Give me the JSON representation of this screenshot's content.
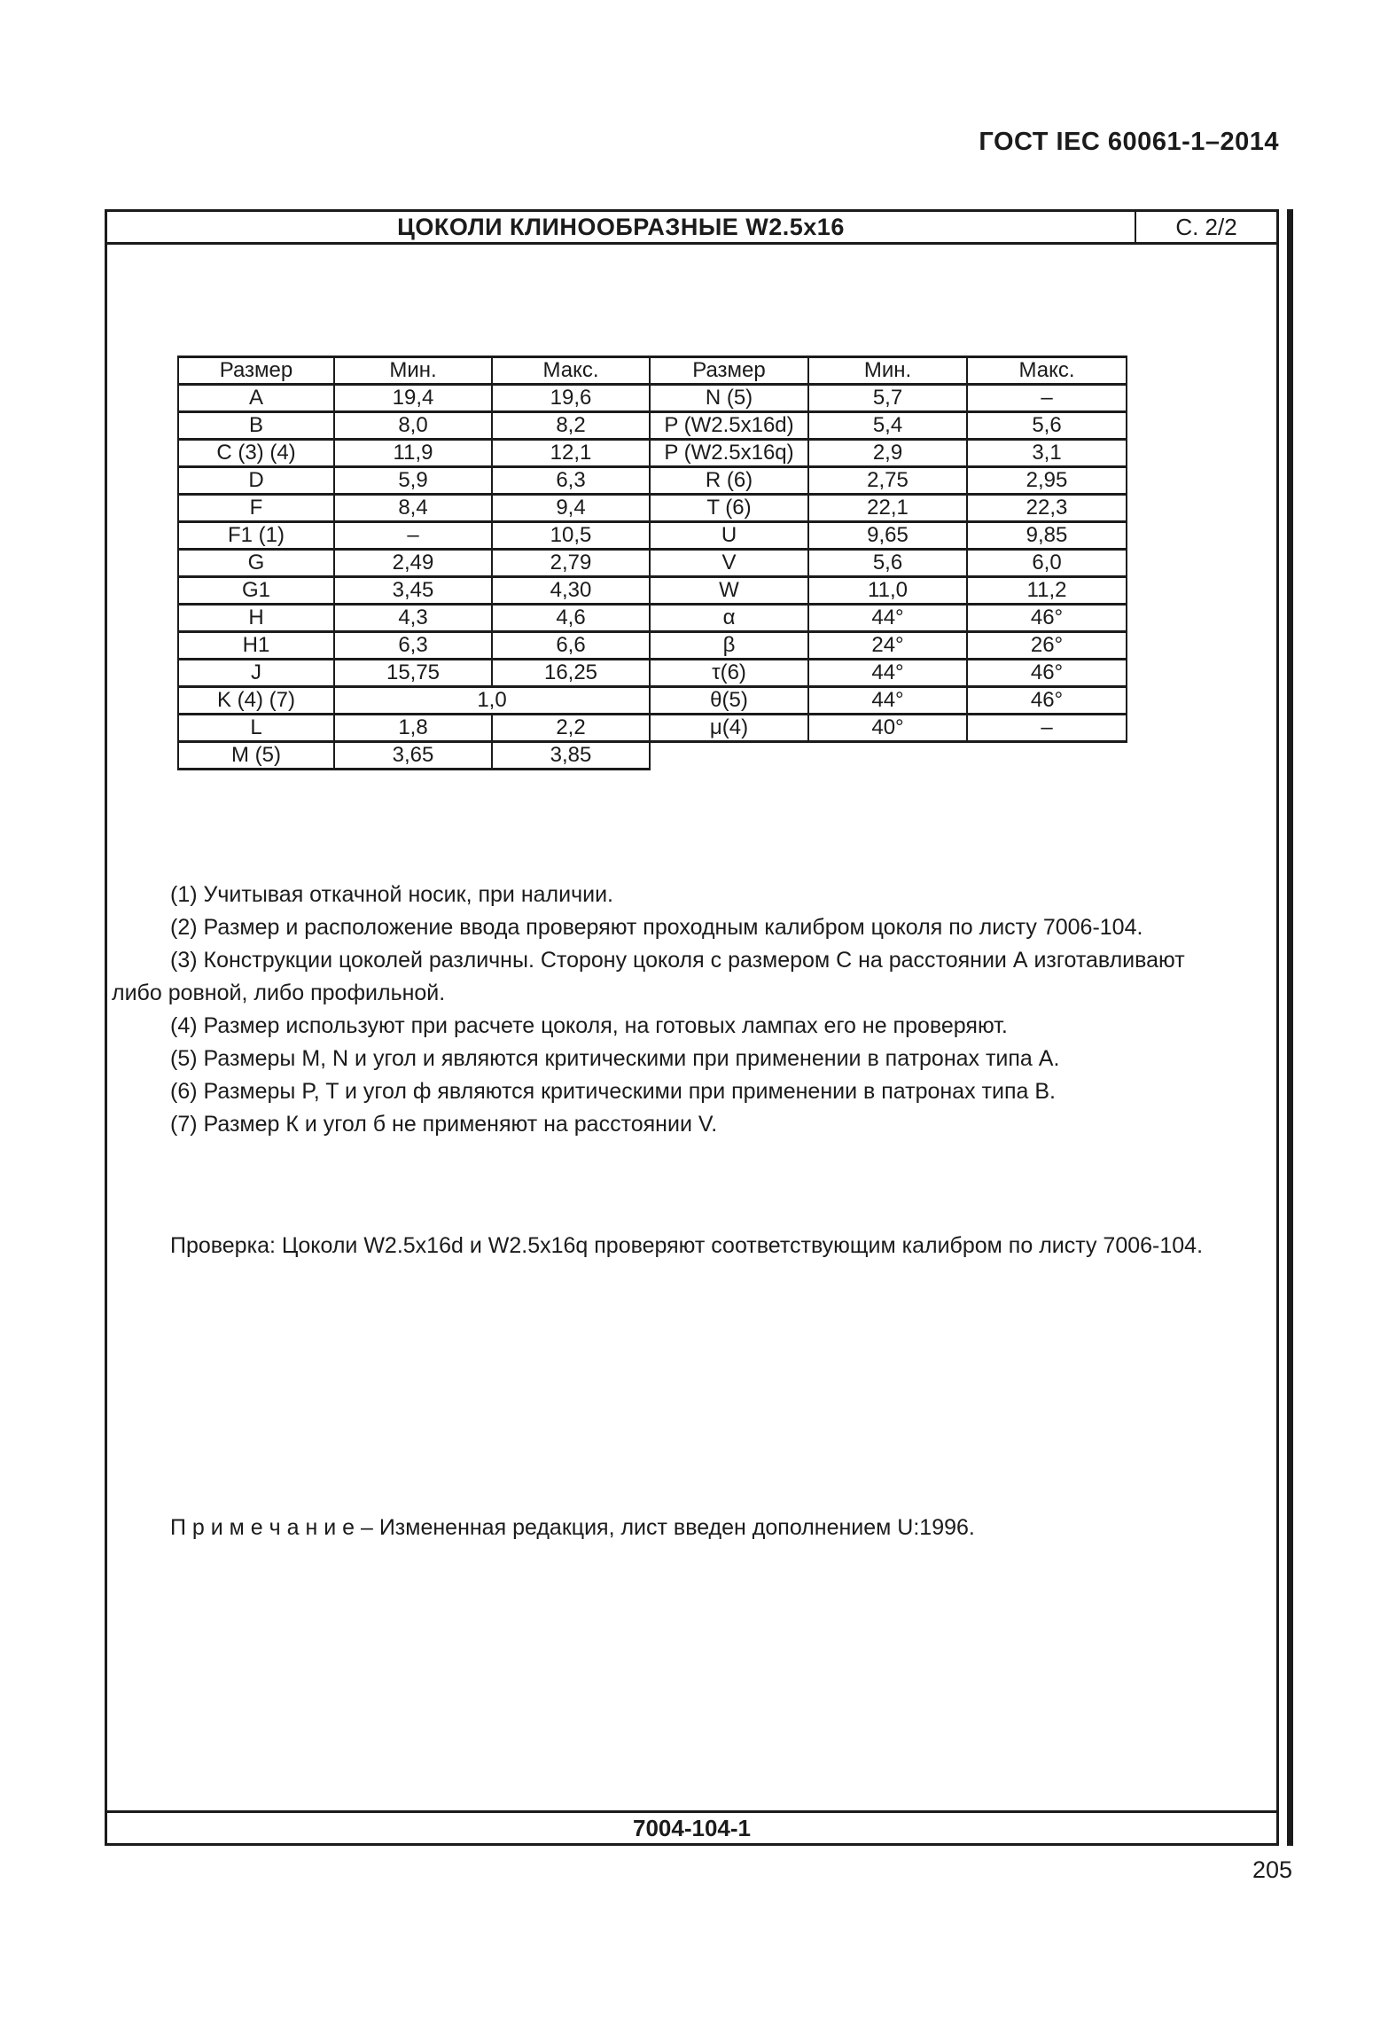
{
  "header": {
    "standard": "ГОСТ IEC 60061-1–2014",
    "title": "ЦОКОЛИ КЛИНООБРАЗНЫЕ W2.5x16",
    "page_indicator": "С. 2/2"
  },
  "table": {
    "columns": [
      "Размер",
      "Мин.",
      "Макс.",
      "Размер",
      "Мин.",
      "Макс."
    ],
    "rows": [
      {
        "cells": [
          "A",
          "19,4",
          "19,6",
          "N (5)",
          "5,7",
          "–"
        ]
      },
      {
        "cells": [
          "B",
          "8,0",
          "8,2",
          "P (W2.5x16d)",
          "5,4",
          "5,6"
        ]
      },
      {
        "cells": [
          "C (3) (4)",
          "11,9",
          "12,1",
          "P (W2.5x16q)",
          "2,9",
          "3,1"
        ]
      },
      {
        "cells": [
          "D",
          "5,9",
          "6,3",
          "R (6)",
          "2,75",
          "2,95"
        ]
      },
      {
        "cells": [
          "F",
          "8,4",
          "9,4",
          "T (6)",
          "22,1",
          "22,3"
        ]
      },
      {
        "cells": [
          "F1 (1)",
          "–",
          "10,5",
          "U",
          "9,65",
          "9,85"
        ]
      },
      {
        "cells": [
          "G",
          "2,49",
          "2,79",
          "V",
          "5,6",
          "6,0"
        ]
      },
      {
        "cells": [
          "G1",
          "3,45",
          "4,30",
          "W",
          "11,0",
          "11,2"
        ]
      },
      {
        "cells": [
          "H",
          "4,3",
          "4,6",
          "α",
          "44°",
          "46°"
        ]
      },
      {
        "cells": [
          "H1",
          "6,3",
          "6,6",
          "β",
          "24°",
          "26°"
        ]
      },
      {
        "cells": [
          "J",
          "15,75",
          "16,25",
          "τ(6)",
          "44°",
          "46°"
        ]
      },
      {
        "cells": [
          "K (4) (7)",
          {
            "v": "1,0",
            "span": 2
          },
          "θ(5)",
          "44°",
          "46°"
        ]
      },
      {
        "cells": [
          "L",
          "1,8",
          "2,2",
          "μ(4)",
          "40°",
          "–"
        ]
      },
      {
        "cells": [
          "M (5)",
          "3,65",
          "3,85",
          null,
          null,
          null
        ]
      }
    ]
  },
  "notes": [
    {
      "text": "(1) Учитывая откачной носик, при наличии.",
      "indent": true
    },
    {
      "text": "(2) Размер и расположение ввода проверяют проходным калибром цоколя по листу 7006-104.",
      "indent": true
    },
    {
      "text": "(3) Конструкции цоколей различны. Сторону цоколя с размером С на расстоянии А изготавливают",
      "indent": true
    },
    {
      "text": "либо ровной, либо профильной.",
      "indent": false
    },
    {
      "text": "(4) Размер используют при расчете цоколя, на готовых лампах его не проверяют.",
      "indent": true
    },
    {
      "text": "(5) Размеры M, N и угол и являются критическими при применении в патронах типа А.",
      "indent": true
    },
    {
      "text": "(6) Размеры P, T и угол ф являются критическими при применении в патронах типа В.",
      "indent": true
    },
    {
      "text": "(7) Размер К и угол б не применяют на расстоянии V.",
      "indent": true
    }
  ],
  "check_note": "Проверка: Цоколи W2.5x16d и W2.5x16q проверяют соответствующим калибром по листу 7006-104.",
  "remark": "П р и м е ч а н и е  – Измененная редакция, лист введен дополнением U:1996.",
  "footer": {
    "sheet_number": "7004-104-1",
    "page_number": "205"
  }
}
